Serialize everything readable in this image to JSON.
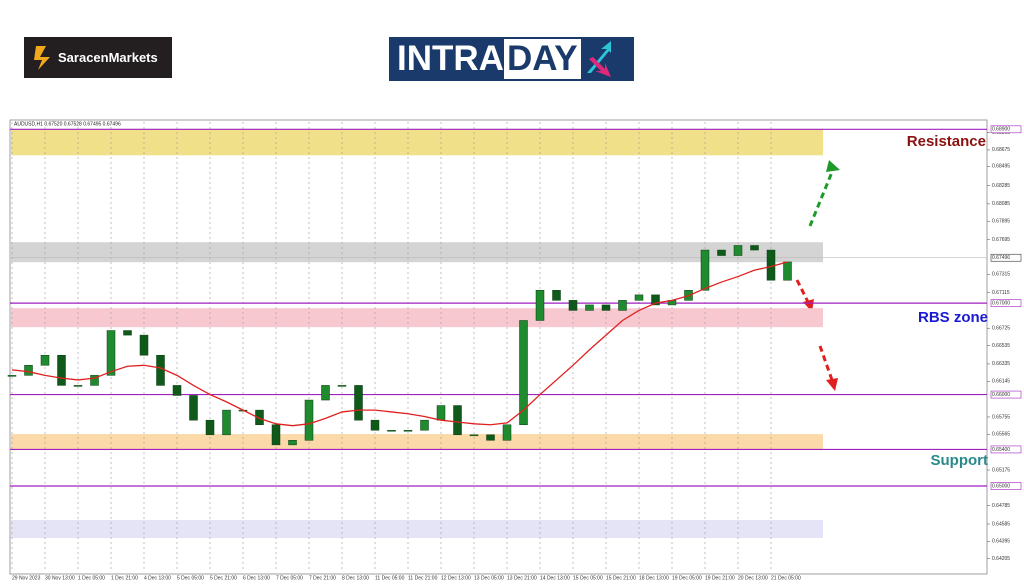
{
  "header": {
    "brand": "SaracenMarkets",
    "banner_left": "INTRA",
    "banner_right": "DAY"
  },
  "chart_data": {
    "type": "candlestick",
    "title": "AUDUSD,H1  0.67520 0.67528 0.67495 0.67496",
    "categories": [
      "29 Nov 2023",
      null,
      "30 Nov 13:00",
      null,
      "1 Dec 05:00",
      null,
      "1 Dec 21:00",
      null,
      "4 Dec 13:00",
      null,
      "5 Dec 05:00",
      null,
      "5 Dec 21:00",
      null,
      "6 Dec 13:00",
      null,
      "7 Dec 05:00",
      null,
      "7 Dec 21:00",
      null,
      "8 Dec 13:00",
      null,
      "11 Dec 05:00",
      null,
      "11 Dec 21:00",
      null,
      "12 Dec 13:00",
      null,
      "13 Dec 05:00",
      null,
      "13 Dec 21:00",
      null,
      "14 Dec 13:00",
      null,
      "15 Dec 05:00",
      null,
      "15 Dec 21:00",
      null,
      "18 Dec 13:00",
      null,
      "19 Dec 05:00",
      null,
      "19 Dec 21:00",
      null,
      "20 Dec 13:00",
      null,
      "21 Dec 05:00",
      null
    ],
    "values": [
      0.6621,
      0.6632,
      0.6643,
      0.661,
      0.661,
      0.6621,
      0.667,
      0.6665,
      0.6643,
      0.661,
      0.6599,
      0.6572,
      0.6556,
      0.6583,
      0.6583,
      0.6567,
      0.6545,
      0.655,
      0.6594,
      0.661,
      0.661,
      0.6572,
      0.6561,
      0.6561,
      0.6561,
      0.6572,
      0.6588,
      0.6556,
      0.6556,
      0.655,
      0.6567,
      0.6681,
      0.6714,
      0.6703,
      0.6692,
      0.6698,
      0.6692,
      0.6703,
      0.6709,
      0.6698,
      0.6703,
      0.6714,
      0.6758,
      0.6752,
      0.6763,
      0.6758,
      0.6725,
      0.6745
    ],
    "up_color": "#1f8a2e",
    "down_color": "#0f5a1a",
    "moving_average": {
      "color": "#e02020",
      "values": [
        0.6627,
        0.6625,
        0.6621,
        0.6618,
        0.6616,
        0.6618,
        0.6625,
        0.6631,
        0.6632,
        0.6629,
        0.6621,
        0.661,
        0.66,
        0.6592,
        0.6583,
        0.6574,
        0.6568,
        0.6566,
        0.6568,
        0.6574,
        0.6581,
        0.6583,
        0.6583,
        0.6581,
        0.6579,
        0.6576,
        0.6572,
        0.657,
        0.6568,
        0.6567,
        0.6569,
        0.6583,
        0.66,
        0.6616,
        0.6632,
        0.6649,
        0.6665,
        0.6681,
        0.6692,
        0.67,
        0.6703,
        0.6708,
        0.6716,
        0.6723,
        0.6729,
        0.6736,
        0.674,
        0.6745
      ]
    },
    "ylim": [
      0.6406,
      0.6898
    ],
    "yticks": [
      0.68865,
      0.68675,
      0.68495,
      0.68285,
      0.68085,
      0.67895,
      0.67695,
      0.67315,
      0.67115,
      0.66725,
      0.66535,
      0.66335,
      0.66145,
      0.65755,
      0.65565,
      0.65175,
      0.64785,
      0.64585,
      0.64395,
      0.64205
    ],
    "level_color": "#a020c0",
    "levels": [
      {
        "value": 0.689,
        "label": "0.68900"
      },
      {
        "value": 0.67,
        "label": "0.67000"
      },
      {
        "value": 0.66,
        "label": "0.66000"
      },
      {
        "value": 0.654,
        "label": "0.65400"
      },
      {
        "value": 0.65,
        "label": "0.65000"
      }
    ],
    "current_price": {
      "value": 0.67496,
      "label": "0.67496"
    },
    "zones": [
      {
        "from": 0.68616,
        "to": 0.689,
        "color": "#f0e08a"
      },
      {
        "from": 0.67447,
        "to": 0.67666,
        "color": "#d4d4d4"
      },
      {
        "from": 0.66737,
        "to": 0.66944,
        "color": "#f8c8d0"
      },
      {
        "from": 0.65393,
        "to": 0.65568,
        "color": "#fbd9a8"
      },
      {
        "from": 0.64432,
        "to": 0.64629,
        "color": "#e4e4f6"
      }
    ],
    "annotations": [
      {
        "text": "Resistance",
        "color": "#8b1010"
      },
      {
        "text": "RBS zone",
        "color": "#1a1ad0"
      },
      {
        "text": "Support",
        "color": "#2a8a8a"
      }
    ]
  }
}
